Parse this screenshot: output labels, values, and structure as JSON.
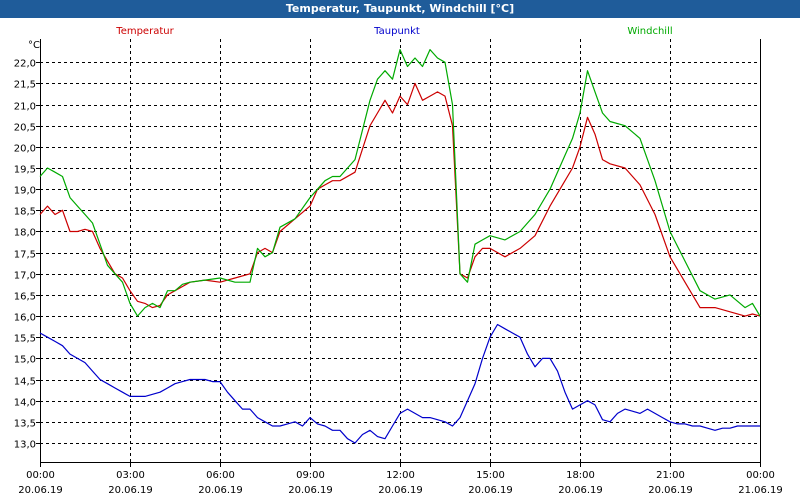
{
  "window": {
    "title": "Temperatur, Taupunkt, Windchill [°C]"
  },
  "chart_data": {
    "type": "line",
    "title": "Temperatur, Taupunkt, Windchill [°C]",
    "ylabel": "°C",
    "ylim": [
      12.55,
      22.55
    ],
    "xlim": [
      0,
      24
    ],
    "yticks": [
      13.0,
      13.5,
      14.0,
      14.5,
      15.0,
      15.5,
      16.0,
      16.5,
      17.0,
      17.5,
      18.0,
      18.5,
      19.0,
      19.5,
      20.0,
      20.5,
      21.0,
      21.5,
      22.0
    ],
    "ytick_labels": [
      "13,0",
      "13,5",
      "14,0",
      "14,5",
      "15,0",
      "15,5",
      "16,0",
      "16,5",
      "17,0",
      "17,5",
      "18,0",
      "18,5",
      "19,0",
      "19,5",
      "20,0",
      "20,5",
      "21,0",
      "21,5",
      "22,0"
    ],
    "xticks": [
      {
        "time": "00:00",
        "date": "20.06.19"
      },
      {
        "time": "03:00",
        "date": "20.06.19"
      },
      {
        "time": "06:00",
        "date": "20.06.19"
      },
      {
        "time": "09:00",
        "date": "20.06.19"
      },
      {
        "time": "12:00",
        "date": "20.06.19"
      },
      {
        "time": "15:00",
        "date": "20.06.19"
      },
      {
        "time": "18:00",
        "date": "20.06.19"
      },
      {
        "time": "21:00",
        "date": "20.06.19"
      },
      {
        "time": "00:00",
        "date": "21.06.19"
      }
    ],
    "grid": true,
    "series": [
      {
        "name": "Temperatur",
        "color": "#cc0000",
        "x": [
          0,
          0.25,
          0.5,
          0.75,
          1,
          1.25,
          1.5,
          1.75,
          2,
          2.25,
          2.5,
          2.75,
          3,
          3.25,
          3.5,
          3.75,
          4,
          4.25,
          4.5,
          4.75,
          5,
          5.5,
          6,
          6.5,
          7,
          7.25,
          7.5,
          7.75,
          8,
          8.5,
          9,
          9.25,
          9.5,
          9.75,
          10,
          10.5,
          11,
          11.25,
          11.5,
          11.75,
          12,
          12.25,
          12.5,
          12.75,
          13,
          13.25,
          13.5,
          13.75,
          14,
          14.25,
          14.5,
          14.75,
          15,
          15.5,
          16,
          16.5,
          17,
          17.5,
          17.75,
          18,
          18.25,
          18.5,
          18.75,
          19,
          19.5,
          20,
          20.5,
          21,
          21.5,
          22,
          22.5,
          23,
          23.5,
          23.75,
          24
        ],
        "y": [
          18.4,
          18.6,
          18.4,
          18.5,
          18.0,
          18.0,
          18.05,
          18.0,
          17.6,
          17.3,
          17.0,
          16.9,
          16.6,
          16.35,
          16.3,
          16.2,
          16.25,
          16.5,
          16.6,
          16.7,
          16.8,
          16.85,
          16.8,
          16.9,
          17.0,
          17.5,
          17.6,
          17.5,
          18.0,
          18.3,
          18.6,
          19.0,
          19.1,
          19.2,
          19.2,
          19.4,
          20.5,
          20.8,
          21.1,
          20.8,
          21.2,
          21.0,
          21.5,
          21.1,
          21.2,
          21.3,
          21.2,
          20.5,
          17.0,
          16.9,
          17.4,
          17.6,
          17.6,
          17.4,
          17.6,
          17.9,
          18.6,
          19.2,
          19.5,
          20.0,
          20.7,
          20.3,
          19.7,
          19.6,
          19.5,
          19.1,
          18.4,
          17.4,
          16.8,
          16.2,
          16.2,
          16.1,
          16.0,
          16.05,
          16.0
        ]
      },
      {
        "name": "Taupunkt",
        "color": "#0000cc",
        "x": [
          0,
          0.25,
          0.5,
          0.75,
          1,
          1.25,
          1.5,
          1.75,
          2,
          2.25,
          2.5,
          2.75,
          3,
          3.25,
          3.5,
          3.75,
          4,
          4.25,
          4.5,
          4.75,
          5,
          5.25,
          5.5,
          5.75,
          6,
          6.25,
          6.5,
          6.75,
          7,
          7.25,
          7.5,
          7.75,
          8,
          8.25,
          8.5,
          8.75,
          9,
          9.25,
          9.5,
          9.75,
          10,
          10.25,
          10.5,
          10.75,
          11,
          11.25,
          11.5,
          11.75,
          12,
          12.25,
          12.5,
          12.75,
          13,
          13.25,
          13.5,
          13.75,
          14,
          14.25,
          14.5,
          14.75,
          15,
          15.25,
          15.5,
          15.75,
          16,
          16.25,
          16.5,
          16.75,
          17,
          17.25,
          17.5,
          17.75,
          18,
          18.25,
          18.5,
          18.75,
          19,
          19.25,
          19.5,
          19.75,
          20,
          20.25,
          20.5,
          20.75,
          21,
          21.25,
          21.5,
          21.75,
          22,
          22.25,
          22.5,
          22.75,
          23,
          23.25,
          23.5,
          23.75,
          24
        ],
        "y": [
          15.6,
          15.5,
          15.4,
          15.3,
          15.1,
          15.0,
          14.9,
          14.7,
          14.5,
          14.4,
          14.3,
          14.2,
          14.1,
          14.1,
          14.1,
          14.15,
          14.2,
          14.3,
          14.4,
          14.45,
          14.5,
          14.5,
          14.5,
          14.45,
          14.45,
          14.2,
          14.0,
          13.8,
          13.8,
          13.6,
          13.5,
          13.4,
          13.4,
          13.45,
          13.5,
          13.4,
          13.6,
          13.45,
          13.4,
          13.3,
          13.3,
          13.1,
          13.0,
          13.2,
          13.3,
          13.15,
          13.1,
          13.4,
          13.7,
          13.8,
          13.7,
          13.6,
          13.6,
          13.55,
          13.5,
          13.4,
          13.6,
          14.0,
          14.4,
          15.0,
          15.5,
          15.8,
          15.7,
          15.6,
          15.5,
          15.1,
          14.8,
          15.0,
          15.0,
          14.7,
          14.2,
          13.8,
          13.9,
          14.0,
          13.9,
          13.55,
          13.5,
          13.7,
          13.8,
          13.75,
          13.7,
          13.8,
          13.7,
          13.6,
          13.5,
          13.45,
          13.45,
          13.4,
          13.4,
          13.35,
          13.3,
          13.35,
          13.35,
          13.4,
          13.4,
          13.4,
          13.4
        ]
      },
      {
        "name": "Windchill",
        "color": "#00aa00",
        "x": [
          0,
          0.25,
          0.5,
          0.75,
          1,
          1.25,
          1.5,
          1.75,
          2,
          2.25,
          2.5,
          2.75,
          3,
          3.25,
          3.5,
          3.75,
          4,
          4.25,
          4.5,
          4.75,
          5,
          5.5,
          6,
          6.5,
          7,
          7.25,
          7.5,
          7.75,
          8,
          8.5,
          9,
          9.25,
          9.5,
          9.75,
          10,
          10.5,
          11,
          11.25,
          11.5,
          11.75,
          12,
          12.25,
          12.5,
          12.75,
          13,
          13.25,
          13.5,
          13.75,
          14,
          14.25,
          14.5,
          14.75,
          15,
          15.5,
          16,
          16.5,
          17,
          17.5,
          17.75,
          18,
          18.25,
          18.5,
          18.75,
          19,
          19.5,
          20,
          20.5,
          21,
          21.5,
          22,
          22.5,
          23,
          23.5,
          23.75,
          24
        ],
        "y": [
          19.3,
          19.5,
          19.4,
          19.3,
          18.8,
          18.6,
          18.4,
          18.2,
          17.7,
          17.2,
          17.0,
          16.8,
          16.3,
          16.0,
          16.2,
          16.3,
          16.2,
          16.6,
          16.6,
          16.75,
          16.8,
          16.85,
          16.9,
          16.8,
          16.8,
          17.6,
          17.4,
          17.5,
          18.1,
          18.3,
          18.8,
          19.0,
          19.2,
          19.3,
          19.3,
          19.7,
          21.1,
          21.6,
          21.8,
          21.6,
          22.3,
          21.9,
          22.1,
          21.9,
          22.3,
          22.1,
          22.0,
          21.0,
          17.0,
          16.8,
          17.7,
          17.8,
          17.9,
          17.8,
          18.0,
          18.4,
          19.0,
          19.8,
          20.2,
          20.8,
          21.8,
          21.3,
          20.8,
          20.6,
          20.5,
          20.2,
          19.2,
          18.0,
          17.3,
          16.6,
          16.4,
          16.5,
          16.2,
          16.3,
          16.0
        ]
      }
    ]
  }
}
